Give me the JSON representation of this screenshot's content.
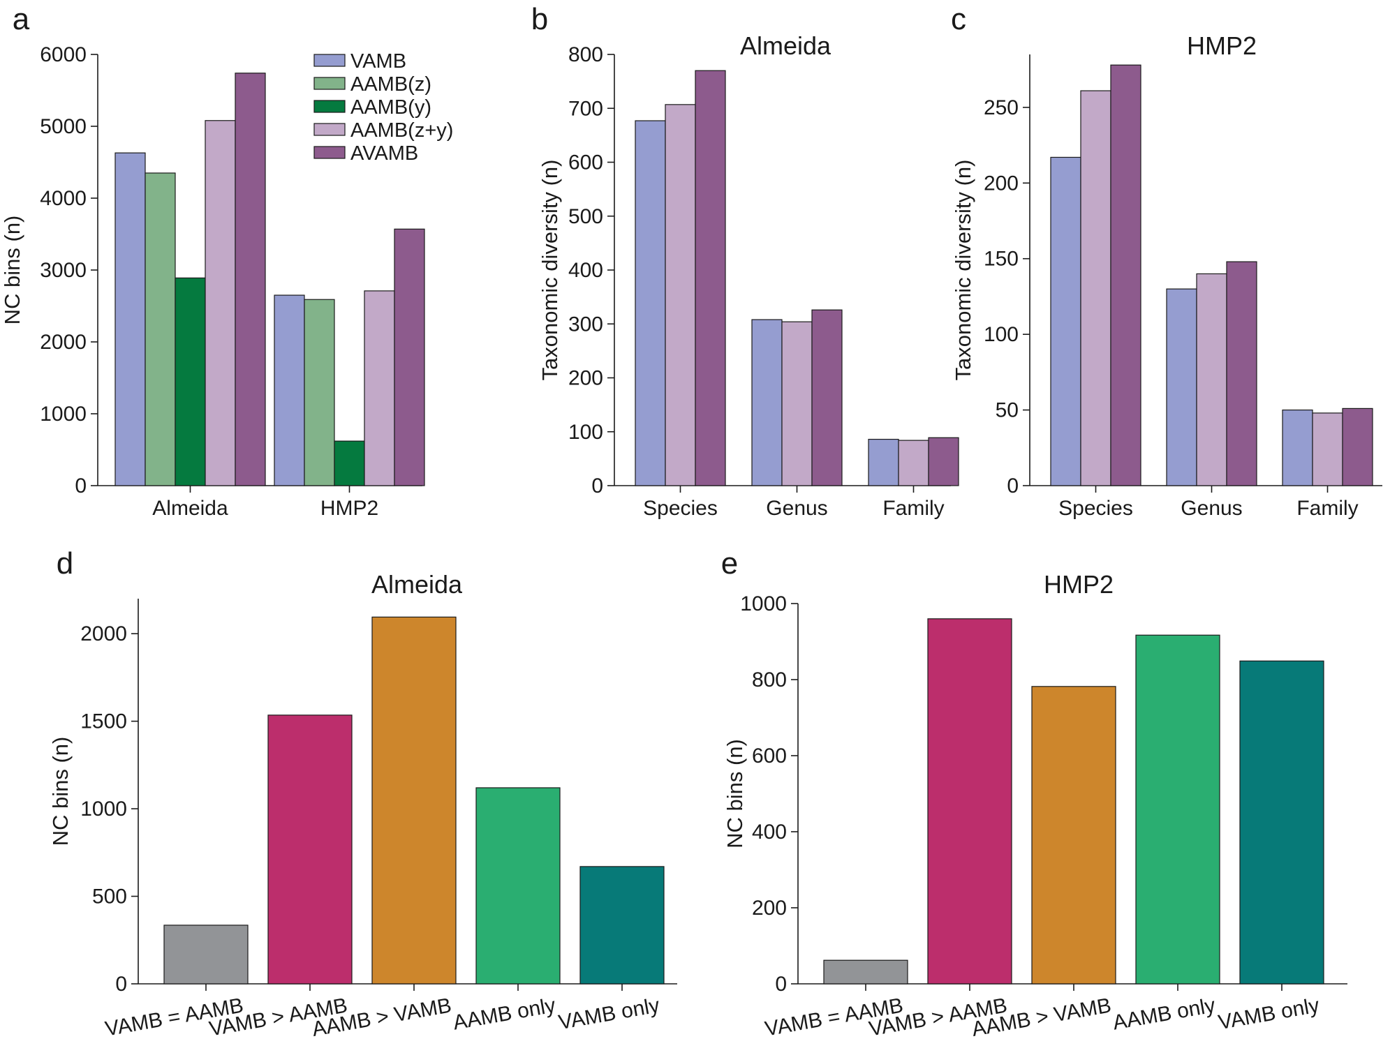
{
  "chart_data": [
    {
      "panel_label": "a",
      "type": "bar",
      "title": "",
      "ylabel": "NC bins (n)",
      "ylim": [
        0,
        6000
      ],
      "yticks": [
        0,
        1000,
        2000,
        3000,
        4000,
        5000,
        6000
      ],
      "categories": [
        "Almeida",
        "HMP2"
      ],
      "series": [
        {
          "name": "VAMB",
          "color": "#959dd0",
          "values": [
            4630,
            2650
          ]
        },
        {
          "name": "AAMB(z)",
          "color": "#82b38a",
          "values": [
            4350,
            2590
          ]
        },
        {
          "name": "AAMB(y)",
          "color": "#057a3f",
          "values": [
            2890,
            620
          ]
        },
        {
          "name": "AAMB(z+y)",
          "color": "#c2a9c8",
          "values": [
            5080,
            2710
          ]
        },
        {
          "name": "AVAMB",
          "color": "#8d5b8d",
          "values": [
            5740,
            3570
          ]
        }
      ],
      "legend": "top-right"
    },
    {
      "panel_label": "b",
      "type": "bar",
      "title": "Almeida",
      "ylabel": "Taxonomic diversity (n)",
      "ylim": [
        0,
        800
      ],
      "yticks": [
        0,
        100,
        200,
        300,
        400,
        500,
        600,
        700,
        800
      ],
      "categories": [
        "Species",
        "Genus",
        "Family"
      ],
      "series": [
        {
          "name": "VAMB",
          "color": "#959dd0",
          "values": [
            677,
            308,
            86
          ]
        },
        {
          "name": "AAMB(z+y)",
          "color": "#c2a9c8",
          "values": [
            707,
            304,
            84
          ]
        },
        {
          "name": "AVAMB",
          "color": "#8d5b8d",
          "values": [
            770,
            326,
            89
          ]
        }
      ]
    },
    {
      "panel_label": "c",
      "type": "bar",
      "title": "HMP2",
      "ylabel": "Taxonomic diversity (n)",
      "ylim": [
        0,
        285
      ],
      "yticks": [
        0,
        50,
        100,
        150,
        200,
        250
      ],
      "categories": [
        "Species",
        "Genus",
        "Family"
      ],
      "series": [
        {
          "name": "VAMB",
          "color": "#959dd0",
          "values": [
            217,
            130,
            50
          ]
        },
        {
          "name": "AAMB(z+y)",
          "color": "#c2a9c8",
          "values": [
            261,
            140,
            48
          ]
        },
        {
          "name": "AVAMB",
          "color": "#8d5b8d",
          "values": [
            278,
            148,
            51
          ]
        }
      ]
    },
    {
      "panel_label": "d",
      "type": "bar",
      "title": "Almeida",
      "ylabel": "NC bins (n)",
      "ylim": [
        0,
        2200
      ],
      "yticks": [
        0,
        500,
        1000,
        1500,
        2000
      ],
      "categories": [
        "VAMB = AAMB",
        "VAMB > AAMB",
        "AAMB > VAMB",
        "AAMB only",
        "VAMB only"
      ],
      "colors": [
        "#929497",
        "#bc2e6c",
        "#cd862c",
        "#2aae71",
        "#077a78"
      ],
      "values": [
        335,
        1535,
        2095,
        1120,
        670
      ]
    },
    {
      "panel_label": "e",
      "type": "bar",
      "title": "HMP2",
      "ylabel": "NC bins (n)",
      "ylim": [
        0,
        1000
      ],
      "yticks": [
        0,
        200,
        400,
        600,
        800,
        1000
      ],
      "categories": [
        "VAMB = AAMB",
        "VAMB > AAMB",
        "AAMB > VAMB",
        "AAMB only",
        "VAMB only"
      ],
      "colors": [
        "#929497",
        "#bc2e6c",
        "#cd862c",
        "#2aae71",
        "#077a78"
      ],
      "values": [
        62,
        960,
        782,
        917,
        849
      ]
    }
  ]
}
